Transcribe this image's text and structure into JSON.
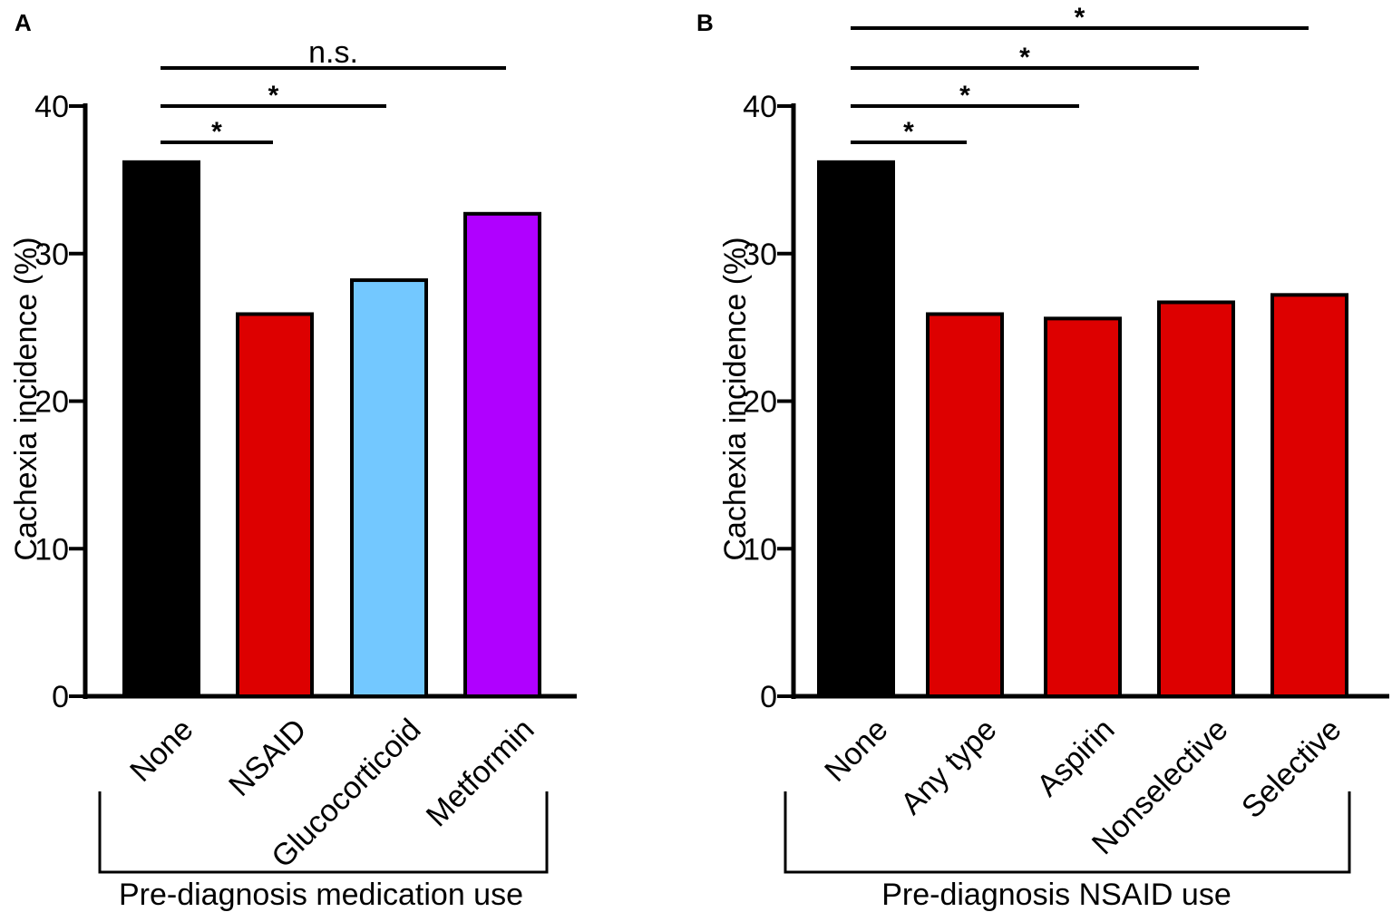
{
  "chart_data": [
    {
      "panel": "A",
      "type": "bar",
      "ylabel": "Cachexia incidence (%)",
      "ylim": [
        0,
        40
      ],
      "yticks": [
        0,
        10,
        20,
        30,
        40
      ],
      "group_label": "Pre-diagnosis medication use",
      "categories": [
        "None",
        "NSAID",
        "Glucocorticoid",
        "Metformin"
      ],
      "values": [
        36.2,
        25.9,
        28.2,
        32.7
      ],
      "colors": [
        "#000000",
        "#dd0000",
        "#73c8ff",
        "#b000ff"
      ],
      "significance": [
        {
          "from": 0,
          "to": 1,
          "label": "*"
        },
        {
          "from": 0,
          "to": 2,
          "label": "*"
        },
        {
          "from": 0,
          "to": 3,
          "label": "n.s."
        }
      ]
    },
    {
      "panel": "B",
      "type": "bar",
      "ylabel": "Cachexia incidence (%)",
      "ylim": [
        0,
        40
      ],
      "yticks": [
        0,
        10,
        20,
        30,
        40
      ],
      "group_label": "Pre-diagnosis NSAID use",
      "categories": [
        "None",
        "Any type",
        "Aspirin",
        "Nonselective",
        "Selective"
      ],
      "values": [
        36.2,
        25.9,
        25.6,
        26.7,
        27.2
      ],
      "colors": [
        "#000000",
        "#dd0000",
        "#dd0000",
        "#dd0000",
        "#dd0000"
      ],
      "significance": [
        {
          "from": 0,
          "to": 1,
          "label": "*"
        },
        {
          "from": 0,
          "to": 2,
          "label": "*"
        },
        {
          "from": 0,
          "to": 3,
          "label": "*"
        },
        {
          "from": 0,
          "to": 4,
          "label": "*"
        }
      ]
    }
  ]
}
